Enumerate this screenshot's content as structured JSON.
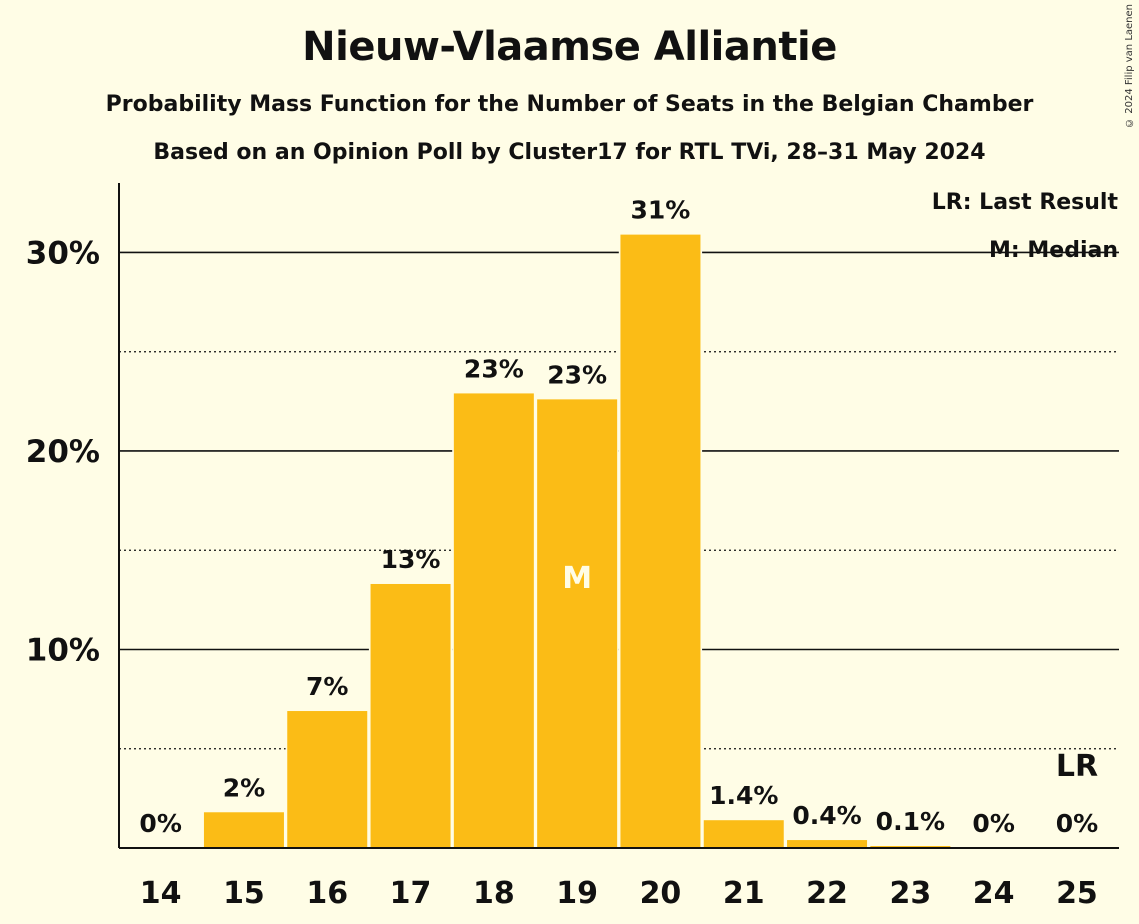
{
  "title": "Nieuw-Vlaamse Alliantie",
  "subtitle": "Probability Mass Function for the Number of Seats in the Belgian Chamber",
  "subtitle2": "Based on an Opinion Poll by Cluster17 for RTL TVi, 28–31 May 2024",
  "copyright": "© 2024 Filip van Laenen",
  "legend": {
    "last_result": "LR: Last Result",
    "median": "M: Median"
  },
  "colors": {
    "bar": "#FBBC16",
    "background": "#FFFDE6",
    "text": "#111111"
  },
  "chart_data": {
    "type": "bar",
    "categories": [
      "14",
      "15",
      "16",
      "17",
      "18",
      "19",
      "20",
      "21",
      "22",
      "23",
      "24",
      "25"
    ],
    "values": [
      0,
      1.8,
      6.9,
      13.3,
      22.9,
      22.6,
      30.9,
      1.4,
      0.4,
      0.1,
      0,
      0
    ],
    "data_labels": [
      "0%",
      "2%",
      "7%",
      "13%",
      "23%",
      "23%",
      "31%",
      "1.4%",
      "0.4%",
      "0.1%",
      "0%",
      "0%"
    ],
    "y_ticks": [
      {
        "value": 10,
        "label": "10%"
      },
      {
        "value": 20,
        "label": "20%"
      },
      {
        "value": 30,
        "label": "30%"
      }
    ],
    "minor_gridlines": [
      5,
      15,
      25
    ],
    "ylim": [
      0,
      33.5
    ],
    "median_category": "19",
    "median_marker": "M",
    "last_result_category": "25",
    "last_result_marker": "LR"
  }
}
